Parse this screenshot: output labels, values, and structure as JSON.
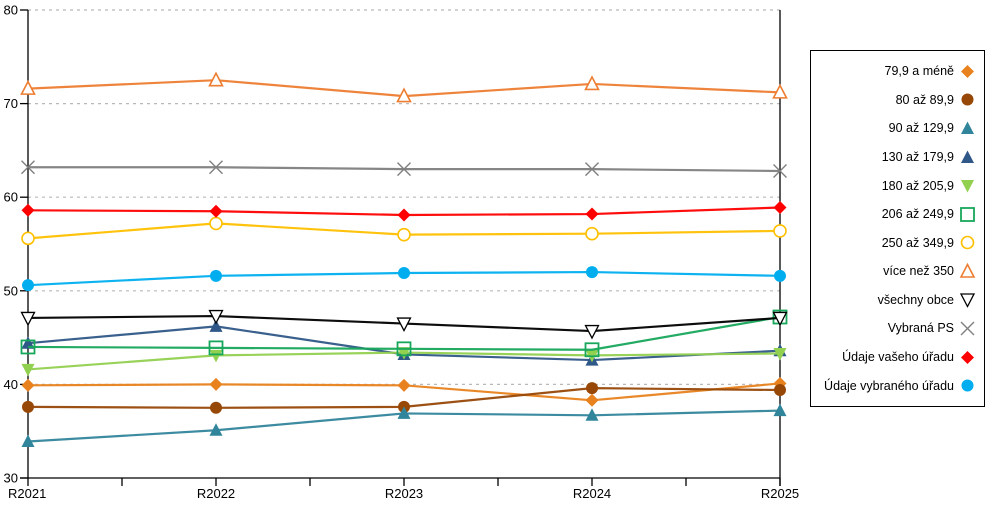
{
  "chart_data": {
    "type": "line",
    "title": "",
    "xlabel": "",
    "ylabel": "",
    "categories": [
      "R2021",
      "R2022",
      "R2023",
      "R2024",
      "R2025"
    ],
    "y_ticks": [
      30,
      40,
      50,
      60,
      70,
      80
    ],
    "ylim": [
      30,
      80
    ],
    "grid": "horizontal dashed gridlines at 40,50,60,70,80",
    "legend_position": "right",
    "axis_color": "#000000",
    "gridline_color": "#b8b8b8",
    "series": [
      {
        "name": "79,9 a méně",
        "marker": "diamond",
        "color": "#E8821E",
        "values": [
          39.9,
          40.0,
          39.9,
          38.3,
          40.1
        ]
      },
      {
        "name": "80 až 89,9",
        "marker": "circle",
        "color": "#974706",
        "values": [
          37.6,
          37.5,
          37.6,
          39.6,
          39.4
        ]
      },
      {
        "name": "90 až 129,9",
        "marker": "triangle",
        "color": "#31859B",
        "values": [
          33.9,
          35.1,
          36.9,
          36.7,
          37.2
        ]
      },
      {
        "name": "130 až 179,9",
        "marker": "triangle",
        "color": "#2F5787",
        "values": [
          44.4,
          46.2,
          43.2,
          42.6,
          43.6
        ]
      },
      {
        "name": "180 až 205,9",
        "marker": "triangle-down",
        "color": "#92D050",
        "values": [
          41.6,
          43.1,
          43.4,
          43.1,
          43.3
        ]
      },
      {
        "name": "206 až 249,9",
        "marker": "square-open",
        "color": "#17A75B",
        "values": [
          44.0,
          43.9,
          43.8,
          43.7,
          47.2
        ]
      },
      {
        "name": "250 až 349,9",
        "marker": "circle-open",
        "color": "#FFC000",
        "values": [
          55.6,
          57.2,
          56.0,
          56.1,
          56.4
        ]
      },
      {
        "name": "více než 350",
        "marker": "triangle-open",
        "color": "#ED7D31",
        "values": [
          71.6,
          72.5,
          70.8,
          72.1,
          71.2
        ]
      },
      {
        "name": "všechny obce",
        "marker": "triangle-down-open",
        "color": "#000000",
        "values": [
          47.1,
          47.3,
          46.5,
          45.7,
          47.1
        ]
      },
      {
        "name": "Vybraná PS",
        "marker": "x",
        "color": "#7F7F7F",
        "values": [
          63.2,
          63.2,
          63.0,
          63.0,
          62.8
        ]
      },
      {
        "name": "Údaje vašeho úřadu",
        "marker": "diamond",
        "color": "#FF0000",
        "values": [
          58.6,
          58.5,
          58.1,
          58.2,
          58.9
        ]
      },
      {
        "name": "Údaje vybraného úřadu",
        "marker": "circle",
        "color": "#00AEEF",
        "values": [
          50.6,
          51.6,
          51.9,
          52.0,
          51.6
        ]
      }
    ]
  }
}
